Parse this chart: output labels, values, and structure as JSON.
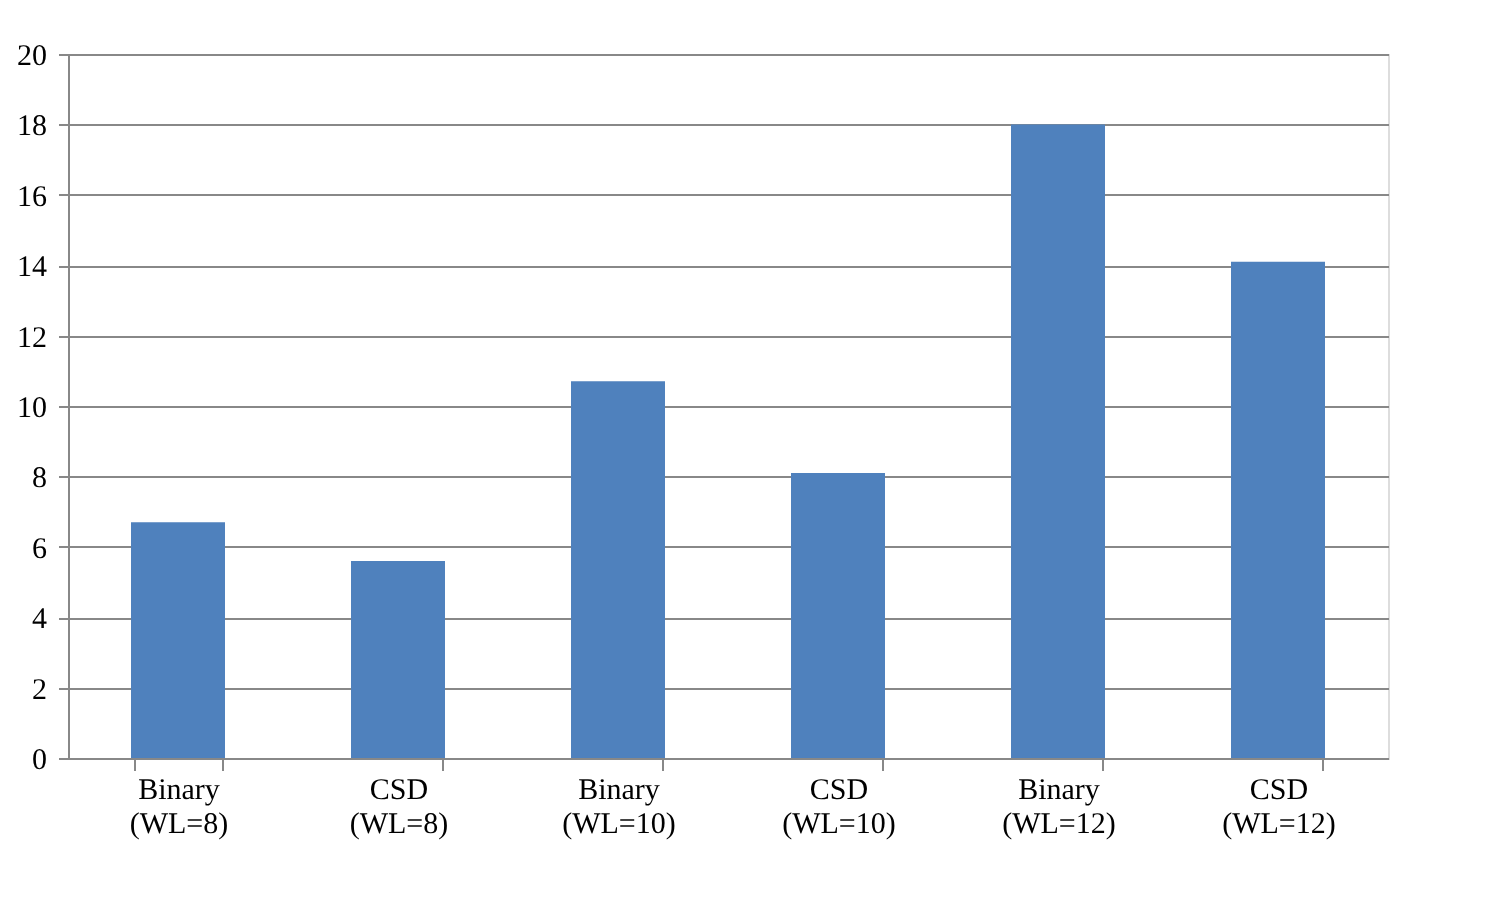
{
  "chart_data": {
    "type": "bar",
    "categories": [
      "Binary\n(WL=8)",
      "CSD\n(WL=8)",
      "Binary\n(WL=10)",
      "CSD\n(WL=10)",
      "Binary\n(WL=12)",
      "CSD\n(WL=12)"
    ],
    "values": [
      6.7,
      5.6,
      10.7,
      8.1,
      18.0,
      14.1
    ],
    "color": "#4f81bd",
    "ylim": [
      0,
      20
    ],
    "yticks": [
      0,
      2,
      4,
      6,
      8,
      10,
      12,
      14,
      16,
      18,
      20
    ],
    "grid": "y"
  }
}
